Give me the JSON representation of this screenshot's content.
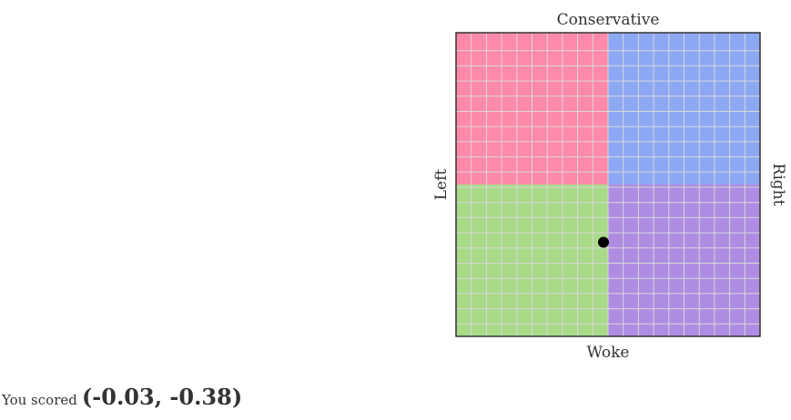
{
  "chart_data": {
    "type": "scatter",
    "title": "",
    "labels": {
      "top": "Conservative",
      "bottom": "Woke",
      "left": "Left",
      "right": "Right"
    },
    "xlim": [
      -1,
      1
    ],
    "ylim": [
      -1,
      1
    ],
    "grid": true,
    "grid_divisions": 20,
    "quadrants": {
      "top_left": "#FF89A8",
      "top_right": "#8DA8F3",
      "bottom_left": "#A8DA88",
      "bottom_right": "#AE8CE2"
    },
    "grid_color": "#d8d8d8",
    "frame_color": "#333333",
    "marker_color": "#000000",
    "point": {
      "x": -0.03,
      "y": -0.38
    }
  },
  "score": {
    "prefix": "You scored",
    "value": "(-0.03, -0.38)"
  }
}
